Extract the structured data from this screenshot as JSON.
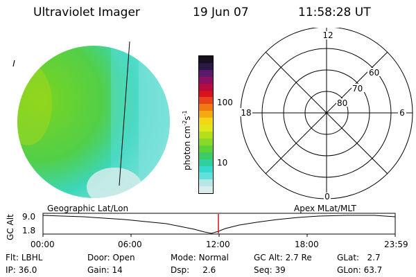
{
  "header": {
    "title": "Ultraviolet Imager",
    "date": "19 Jun 07",
    "time": "11:58:28 UT"
  },
  "colorbar": {
    "label": "photon cm",
    "label_exp": "-2",
    "label_unit": "s",
    "label_unit_exp": "-1",
    "ticks": [
      "100",
      "10"
    ],
    "colors": [
      "#d8ecec",
      "#b8e6e6",
      "#5ee0dc",
      "#36d8d0",
      "#2fcfa0",
      "#3ccc66",
      "#5cd236",
      "#8ad928",
      "#b4e01a",
      "#e1e61a",
      "#f2d715",
      "#f5a80f",
      "#f07a12",
      "#e8431a",
      "#d8121d",
      "#b50b3e",
      "#8c1060",
      "#5a1a6a",
      "#2b1844",
      "#161020"
    ]
  },
  "polar": {
    "mlt_labels": {
      "top": "12",
      "left": "18",
      "right": "6",
      "bottom": "0"
    },
    "lat_labels": [
      "60",
      "70",
      "80"
    ]
  },
  "timeline": {
    "left_title": "Geographic Lat/Lon",
    "right_title": "Apex  MLat/MLT",
    "y_axis_label": "GC Alt",
    "y_ticks": [
      "9.0",
      "1.8"
    ],
    "x_ticks": [
      "00:00",
      "06:00",
      "12:00",
      "18:00",
      "23:59"
    ],
    "current_marker_color": "#d01010"
  },
  "footer": {
    "flt_label": "Flt:",
    "flt_value": "LBHL",
    "ip_label": "IP:",
    "ip_value": "36.0",
    "door_label": "Door:",
    "door_value": "Open",
    "gain_label": "Gain:",
    "gain_value": "14",
    "mode_label": "Mode:",
    "mode_value": "Normal",
    "dsp_label": "Dsp:",
    "dsp_value": "2.6",
    "gcalt_label": "GC Alt:",
    "gcalt_value": "2.7 Re",
    "seq_label": "Seq:",
    "seq_value": "39",
    "glat_label": "GLat:",
    "glat_value": "2.7",
    "glon_label": "GLon:",
    "glon_value": "63.7"
  }
}
